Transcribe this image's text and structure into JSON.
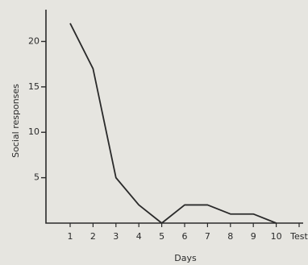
{
  "chart_data": {
    "type": "line",
    "ylabel": "Social responses",
    "xlabel": "Days",
    "categories": [
      "1",
      "2",
      "3",
      "4",
      "5",
      "6",
      "7",
      "8",
      "9",
      "10",
      "Test"
    ],
    "values": [
      22,
      17,
      5,
      2,
      0,
      2,
      2,
      1,
      1,
      0,
      null
    ],
    "color": "#2a2a2a",
    "ylim": [
      0,
      23.5
    ],
    "yticks": [
      5,
      10,
      15,
      20
    ],
    "grid": false
  }
}
